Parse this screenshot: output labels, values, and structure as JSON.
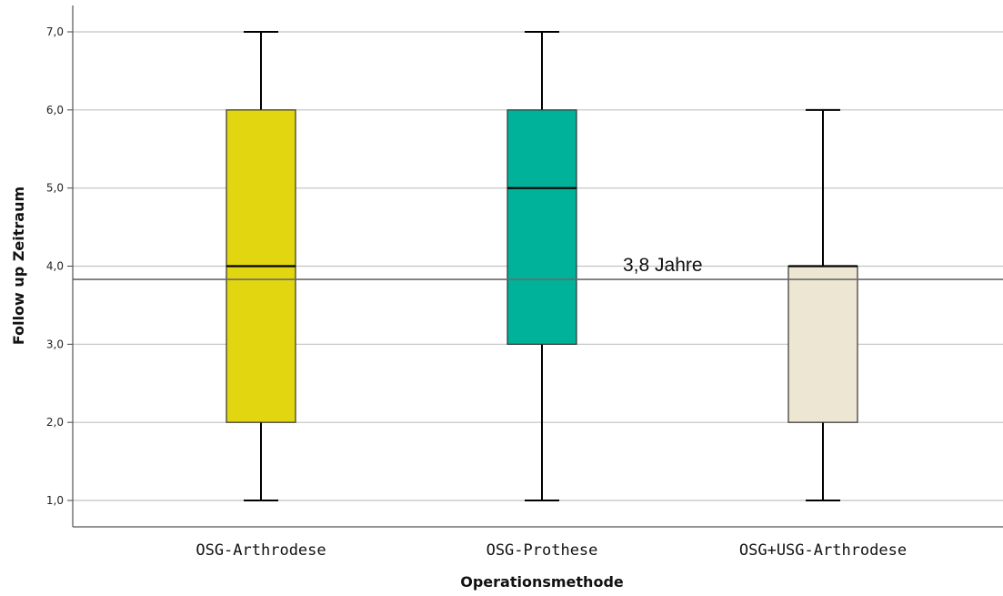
{
  "chart_data": {
    "type": "boxplot",
    "xlabel": "Operationsmethode",
    "ylabel": "Follow up Zeitraum",
    "ylim": [
      0.67,
      7.35
    ],
    "y_ticks": [
      1.0,
      2.0,
      3.0,
      4.0,
      5.0,
      6.0,
      7.0
    ],
    "y_tick_labels": [
      "1,0",
      "2,0",
      "3,0",
      "4,0",
      "5,0",
      "6,0",
      "7,0"
    ],
    "grid": "horizontal",
    "categories": [
      "OSG-Arthrodese",
      "OSG-Prothese",
      "OSG+USG-Arthrodese"
    ],
    "boxes": [
      {
        "category": "OSG-Arthrodese",
        "min": 1.0,
        "q1": 2.0,
        "median": 4.0,
        "q3": 6.0,
        "max": 7.0,
        "color": "#e2d610"
      },
      {
        "category": "OSG-Prothese",
        "min": 1.0,
        "q1": 3.0,
        "median": 5.0,
        "q3": 6.0,
        "max": 7.0,
        "color": "#00b29a"
      },
      {
        "category": "OSG+USG-Arthrodese",
        "min": 1.0,
        "q1": 2.0,
        "median": 4.0,
        "q3": 4.0,
        "max": 6.0,
        "color": "#ece6d2"
      }
    ],
    "reference_line": {
      "y": 3.83,
      "label": "3,8 Jahre"
    }
  }
}
